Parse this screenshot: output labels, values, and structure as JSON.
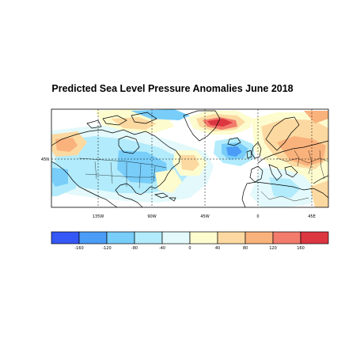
{
  "title": "Predicted Sea Level Pressure Anomalies June 2018",
  "map": {
    "lat_labels": [
      "45N"
    ],
    "lon_labels": [
      "135W",
      "90W",
      "45W",
      "0",
      "45E"
    ]
  },
  "colorbar": {
    "ticks": [
      "-160",
      "-120",
      "-80",
      "-40",
      "0",
      "40",
      "80",
      "120",
      "160"
    ],
    "colors": [
      "#3557f5",
      "#4b9cf7",
      "#78cdf9",
      "#b2ebfb",
      "#e3f9fb",
      "#fdfccf",
      "#fcd9a1",
      "#fab27c",
      "#f27b6c",
      "#dc3640"
    ]
  },
  "colors": {
    "ocean_blank": "#ffffff",
    "coast": "#000000"
  }
}
